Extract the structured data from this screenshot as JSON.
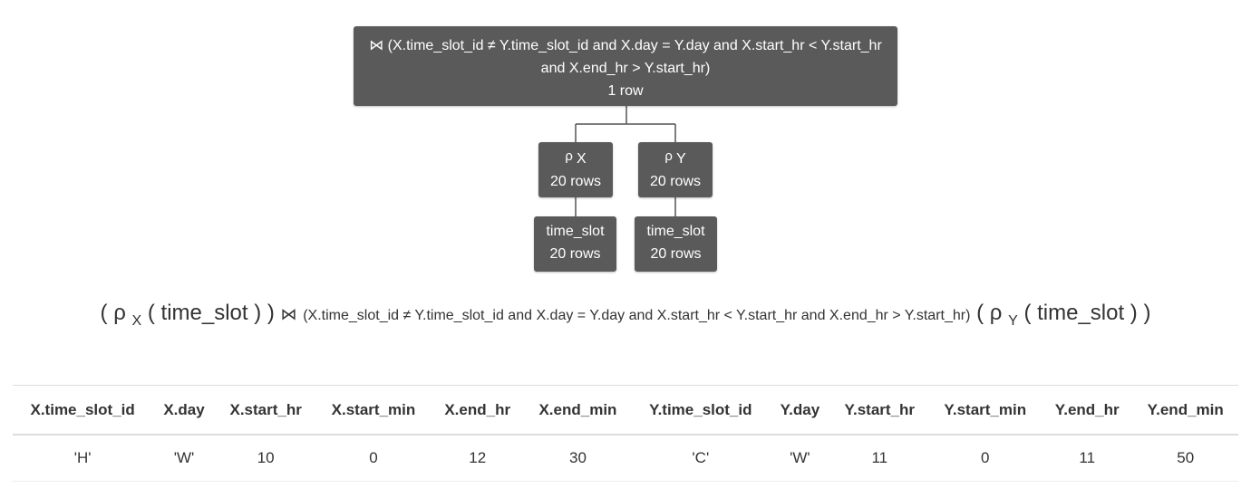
{
  "tree": {
    "join_node": {
      "symbol": "⋈",
      "condition": "(X.time_slot_id ≠ Y.time_slot_id and X.day = Y.day and X.start_hr < Y.start_hr and X.end_hr > Y.start_hr)",
      "rows": "1 row"
    },
    "rename_x": {
      "symbol": "ρ",
      "name": "X",
      "rows": "20 rows"
    },
    "rename_y": {
      "symbol": "ρ",
      "name": "Y",
      "rows": "20 rows"
    },
    "relation_x": {
      "name": "time_slot",
      "rows": "20 rows"
    },
    "relation_y": {
      "name": "time_slot",
      "rows": "20 rows"
    }
  },
  "expression": {
    "open1": "( ρ",
    "sub1": "X",
    "rel1": "( time_slot ) )",
    "join": "⋈",
    "condition": "(X.time_slot_id ≠ Y.time_slot_id and X.day = Y.day and X.start_hr < Y.start_hr and X.end_hr > Y.start_hr)",
    "open2": "( ρ",
    "sub2": "Y",
    "rel2": "( time_slot ) )"
  },
  "result": {
    "columns": [
      "X.time_slot_id",
      "X.day",
      "X.start_hr",
      "X.start_min",
      "X.end_hr",
      "X.end_min",
      "Y.time_slot_id",
      "Y.day",
      "Y.start_hr",
      "Y.start_min",
      "Y.end_hr",
      "Y.end_min"
    ],
    "rows": [
      [
        "'H'",
        "'W'",
        "10",
        "0",
        "12",
        "30",
        "'C'",
        "'W'",
        "11",
        "0",
        "11",
        "50"
      ]
    ]
  },
  "colors": {
    "node_bg": "#5a5a5a",
    "node_text": "#ffffff",
    "connector": "#555555",
    "text": "#333333"
  }
}
